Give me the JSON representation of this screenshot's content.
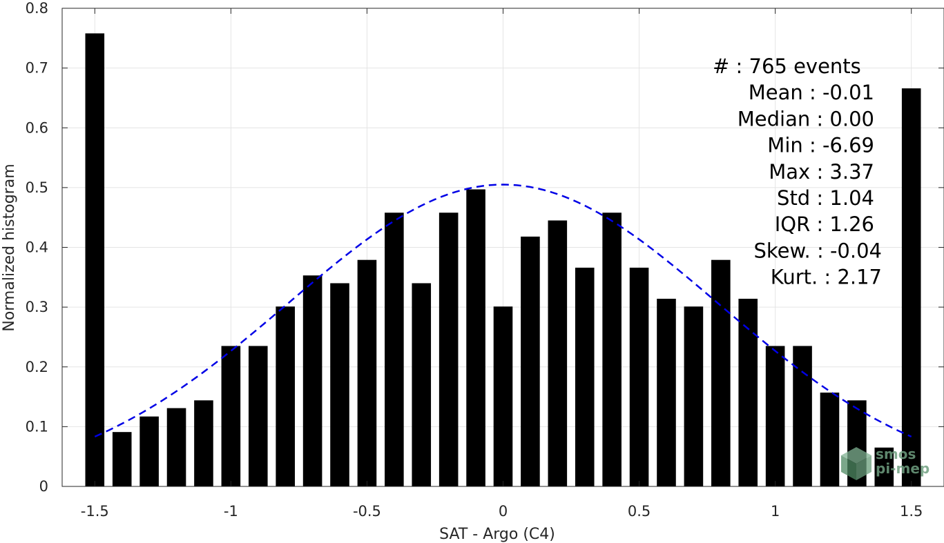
{
  "chart_data": {
    "type": "bar",
    "xlabel": "SAT - Argo (C4)",
    "ylabel": "Normalized histogram",
    "xlim": [
      -1.62,
      1.62
    ],
    "ylim": [
      0,
      0.8
    ],
    "xticks": [
      -1.5,
      -1,
      -0.5,
      0,
      0.5,
      1,
      1.5
    ],
    "xtick_labels": [
      "-1.5",
      "-1",
      "-0.5",
      "0",
      "0.5",
      "1",
      "1.5"
    ],
    "yticks": [
      0,
      0.1,
      0.2,
      0.3,
      0.4,
      0.5,
      0.6,
      0.7,
      0.8
    ],
    "ytick_labels": [
      "0",
      "0.1",
      "0.2",
      "0.3",
      "0.4",
      "0.5",
      "0.6",
      "0.7",
      "0.8"
    ],
    "grid": true,
    "bar_color": "#000000",
    "bar_width": 0.07,
    "x": [
      -1.5,
      -1.4,
      -1.3,
      -1.2,
      -1.1,
      -1.0,
      -0.9,
      -0.8,
      -0.7,
      -0.6,
      -0.5,
      -0.4,
      -0.3,
      -0.2,
      -0.1,
      0.0,
      0.1,
      0.2,
      0.3,
      0.4,
      0.5,
      0.6,
      0.7,
      0.8,
      0.9,
      1.0,
      1.1,
      1.2,
      1.3,
      1.4,
      1.5
    ],
    "values": [
      0.758,
      0.091,
      0.117,
      0.131,
      0.144,
      0.235,
      0.235,
      0.301,
      0.353,
      0.34,
      0.379,
      0.458,
      0.34,
      0.458,
      0.497,
      0.301,
      0.418,
      0.445,
      0.366,
      0.458,
      0.366,
      0.314,
      0.301,
      0.379,
      0.314,
      0.235,
      0.235,
      0.157,
      0.144,
      0.065,
      0.666
    ],
    "fit_curve": {
      "style": "dashed",
      "color": "#0000e6",
      "mean": 0.0,
      "std": 0.79,
      "peak": 0.505,
      "x_range": [
        -1.5,
        1.5
      ]
    },
    "stats": [
      {
        "label": "#  : 765 events",
        "align": "left"
      },
      {
        "label": "Mean : -0.01"
      },
      {
        "label": "Median : 0.00"
      },
      {
        "label": "Min : -6.69"
      },
      {
        "label": "Max : 3.37"
      },
      {
        "label": "Std : 1.04"
      },
      {
        "label": "IQR : 1.26"
      },
      {
        "label": "Skew. : -0.04"
      },
      {
        "label": "Kurt. : 2.17"
      }
    ],
    "watermark": {
      "line1": "smos",
      "line2": "pi-mep",
      "color": "#4f8a63"
    }
  }
}
